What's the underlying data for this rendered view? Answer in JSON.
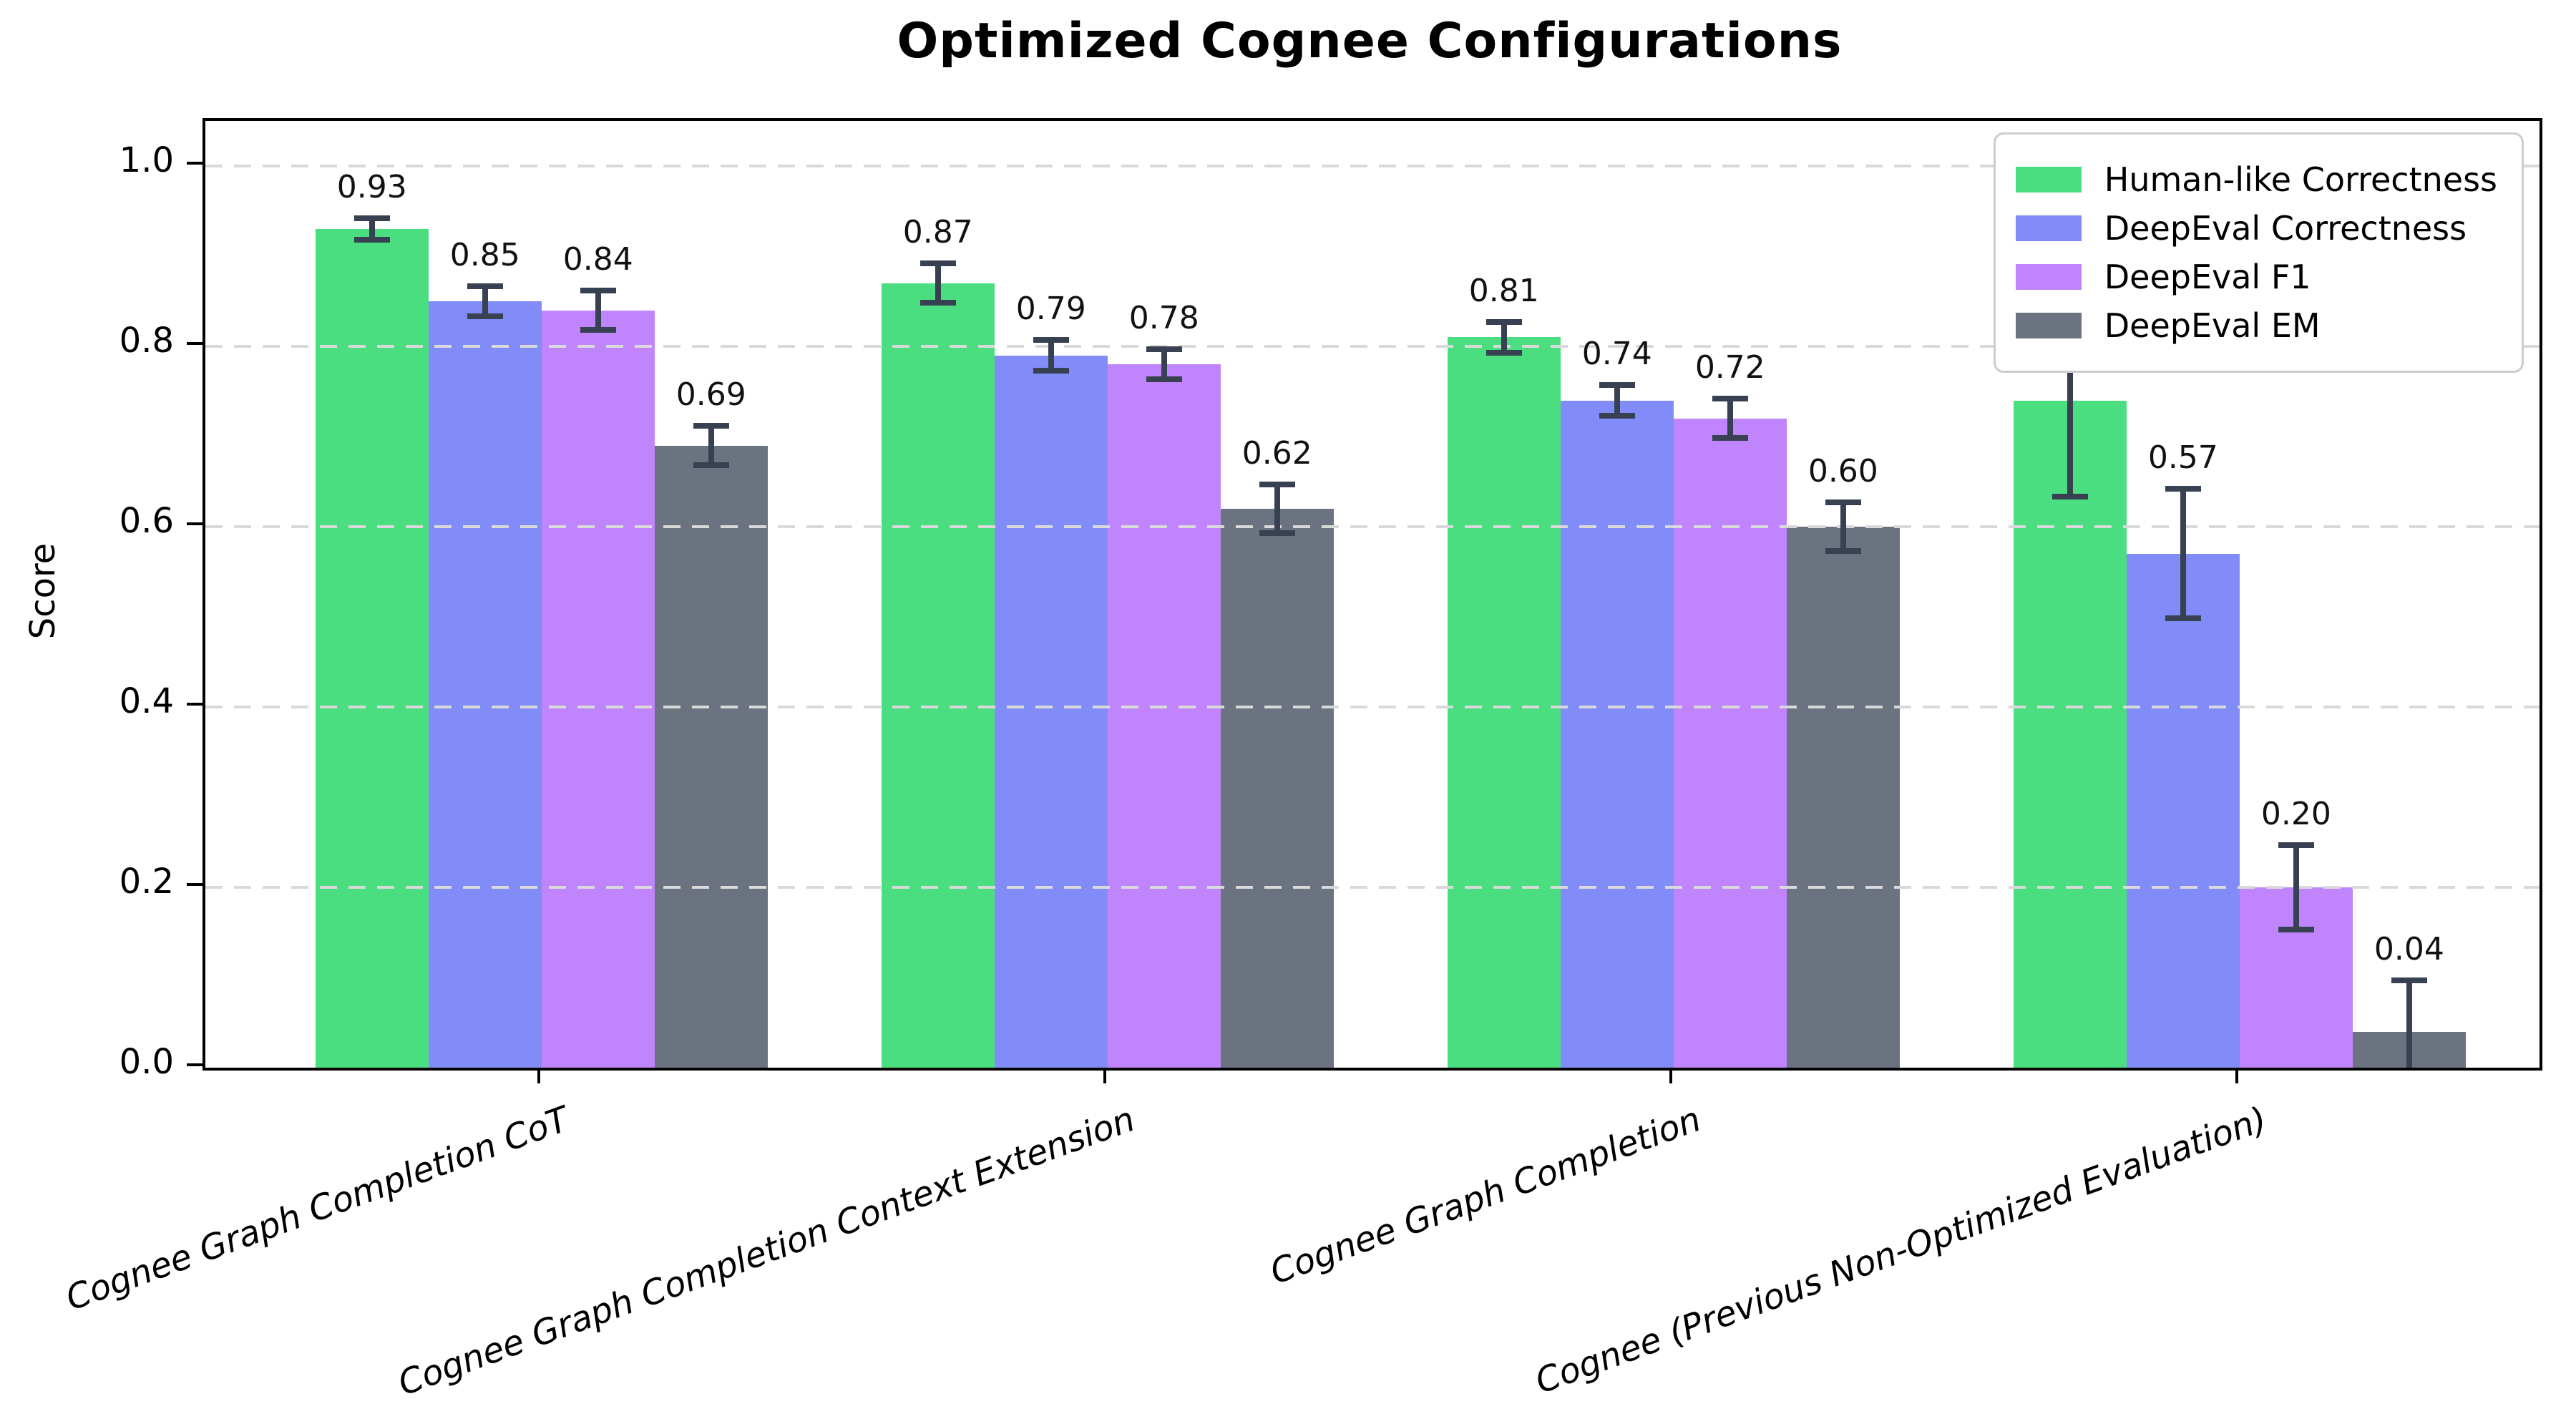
{
  "figure": {
    "title": "Optimized Cognee Configurations",
    "ylabel": "Score"
  },
  "chart_data": {
    "type": "bar",
    "title": "Optimized Cognee Configurations",
    "xlabel": "",
    "ylabel": "Score",
    "ylim": [
      0,
      1.05
    ],
    "yticks": [
      "0.0",
      "0.2",
      "0.4",
      "0.6",
      "0.8",
      "1.0"
    ],
    "grid": true,
    "grid_style": "dashed",
    "legend_position": "upper right",
    "categories": [
      "Cognee Graph Completion CoT",
      "Cognee Graph Completion Context Extension",
      "Cognee Graph Completion",
      "Cognee (Previous Non-Optimized Evaluation)"
    ],
    "series": [
      {
        "name": "Human-like Correctness",
        "color": "#4ade80",
        "values": [
          0.93,
          0.87,
          0.81,
          0.74
        ],
        "errors": [
          0.015,
          0.025,
          0.02,
          0.11
        ],
        "value_labels": [
          "0.93",
          "0.87",
          "0.81",
          "0.74"
        ]
      },
      {
        "name": "DeepEval Correctness",
        "color": "#818cf8",
        "values": [
          0.85,
          0.79,
          0.74,
          0.57
        ],
        "errors": [
          0.02,
          0.02,
          0.02,
          0.075
        ],
        "value_labels": [
          "0.85",
          "0.79",
          "0.74",
          "0.57"
        ]
      },
      {
        "name": "DeepEval F1",
        "color": "#c084fc",
        "values": [
          0.84,
          0.78,
          0.72,
          0.2
        ],
        "errors": [
          0.025,
          0.02,
          0.025,
          0.05
        ],
        "value_labels": [
          "0.84",
          "0.78",
          "0.72",
          "0.20"
        ]
      },
      {
        "name": "DeepEval EM",
        "color": "#6b7280",
        "values": [
          0.69,
          0.62,
          0.6,
          0.04
        ],
        "errors": [
          0.025,
          0.03,
          0.03,
          0.06
        ],
        "value_labels": [
          "0.69",
          "0.62",
          "0.60",
          "0.04"
        ]
      }
    ],
    "errorbar_color": "#374151",
    "gridline_color": "#d9d9d9"
  }
}
